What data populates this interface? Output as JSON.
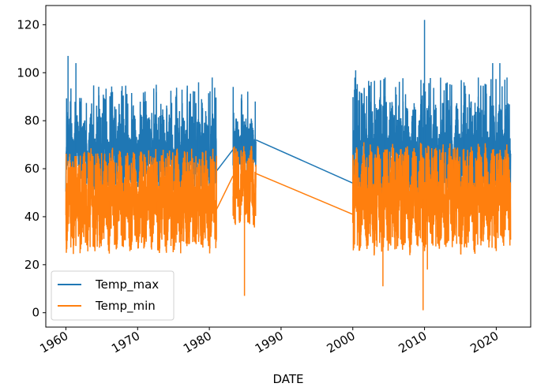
{
  "chart_data": {
    "type": "line",
    "xlabel": "DATE",
    "ylabel": "",
    "title": "",
    "xlim": [
      1957.2,
      2024.8
    ],
    "ylim": [
      -6,
      128
    ],
    "x_ticks": [
      1960,
      1970,
      1980,
      1990,
      2000,
      2010,
      2020
    ],
    "x_tick_labels": [
      "1960",
      "1970",
      "1980",
      "1990",
      "2000",
      "2010",
      "2020"
    ],
    "y_ticks": [
      0,
      20,
      40,
      60,
      80,
      100,
      120
    ],
    "y_tick_labels": [
      "0",
      "20",
      "40",
      "60",
      "80",
      "100",
      "120"
    ],
    "grid": false,
    "legend": {
      "position": "lower-left"
    },
    "series": [
      {
        "name": "Temp_max",
        "color": "#1f77b4",
        "segments": [
          {
            "x_start": 1960.0,
            "x_end": 1981.0,
            "cycle_years": 1.0,
            "low": 57,
            "high": 77,
            "spikes": [
              [
                1960.3,
                107
              ],
              [
                1961.4,
                104
              ],
              [
                1966.5,
                92
              ],
              [
                1972.6,
                95
              ],
              [
                1978.5,
                96
              ],
              [
                1980.4,
                98
              ]
            ]
          },
          {
            "x_start": 1983.3,
            "x_end": 1986.5,
            "cycle_years": 1.0,
            "low": 63,
            "high": 77,
            "spikes": [
              [
                1984.5,
                91
              ],
              [
                1986.4,
                88
              ]
            ]
          },
          {
            "x_start": 2000.0,
            "x_end": 2022.0,
            "cycle_years": 1.0,
            "low": 55,
            "high": 80,
            "spikes": [
              [
                2000.4,
                101
              ],
              [
                2004.5,
                98
              ],
              [
                2009.5,
                97
              ],
              [
                2010.0,
                122
              ],
              [
                2015.5,
                96
              ],
              [
                2017.5,
                98
              ],
              [
                2019.5,
                104
              ],
              [
                2020.5,
                104
              ],
              [
                2021.5,
                98
              ]
            ]
          }
        ],
        "connectors": [
          [
            1981.0,
            59
          ],
          [
            1983.3,
            68
          ],
          [
            1986.5,
            72
          ],
          [
            2000.0,
            54
          ]
        ]
      },
      {
        "name": "Temp_min",
        "color": "#ff7f0e",
        "segments": [
          {
            "x_start": 1960.0,
            "x_end": 1981.0,
            "cycle_years": 1.0,
            "low": 33,
            "high": 60,
            "spikes": [
              [
                1960.1,
                29
              ],
              [
                1961.1,
                28
              ],
              [
                1972.8,
                26
              ],
              [
                1966.0,
                30
              ]
            ]
          },
          {
            "x_start": 1983.3,
            "x_end": 1986.5,
            "cycle_years": 1.0,
            "low": 42,
            "high": 63,
            "spikes": [
              [
                1984.9,
                7
              ],
              [
                1985.5,
                40
              ]
            ]
          },
          {
            "x_start": 2000.0,
            "x_end": 2022.0,
            "cycle_years": 1.0,
            "low": 33,
            "high": 62,
            "spikes": [
              [
                2004.2,
                11
              ],
              [
                2007.3,
                29
              ],
              [
                2009.8,
                1
              ],
              [
                2010.4,
                18
              ],
              [
                2021.9,
                32
              ]
            ]
          }
        ],
        "connectors": [
          [
            1981.0,
            43
          ],
          [
            1983.3,
            57
          ],
          [
            1986.5,
            58
          ],
          [
            2000.0,
            41
          ]
        ]
      }
    ]
  }
}
